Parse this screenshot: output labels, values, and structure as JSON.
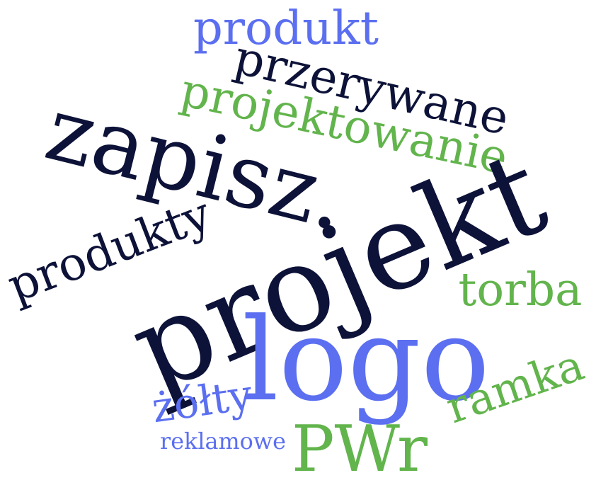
{
  "colors": {
    "navy": "#0d1238",
    "blue": "#5b6ff0",
    "green": "#62b44c"
  },
  "words": [
    {
      "key": "produkt",
      "text": "produkt",
      "color": "#5b6ff0"
    },
    {
      "key": "przerywane",
      "text": "przerywane",
      "color": "#0d1238"
    },
    {
      "key": "projektowanie",
      "text": "projektowanie",
      "color": "#62b44c"
    },
    {
      "key": "zapisz",
      "text": "zapisz.",
      "color": "#0d1238"
    },
    {
      "key": "produkty",
      "text": "produkty",
      "color": "#0d1238"
    },
    {
      "key": "projekt",
      "text": "projekt",
      "color": "#0d1238"
    },
    {
      "key": "torba",
      "text": "torba",
      "color": "#62b44c"
    },
    {
      "key": "logo",
      "text": "logo",
      "color": "#5b6ff0"
    },
    {
      "key": "zolty",
      "text": "żółty",
      "color": "#5b6ff0"
    },
    {
      "key": "ramka",
      "text": "ramka",
      "color": "#62b44c"
    },
    {
      "key": "reklamowe",
      "text": "reklamowe",
      "color": "#5b6ff0"
    },
    {
      "key": "pwr",
      "text": "PWr",
      "color": "#62b44c"
    }
  ]
}
